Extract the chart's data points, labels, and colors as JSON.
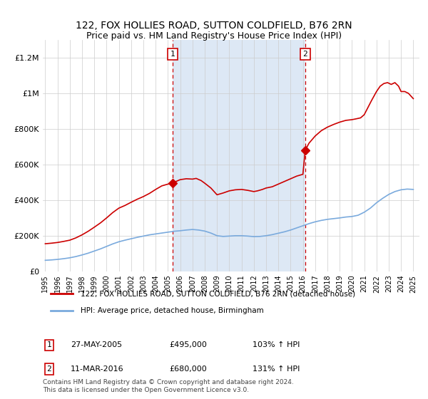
{
  "title1": "122, FOX HOLLIES ROAD, SUTTON COLDFIELD, B76 2RN",
  "title2": "Price paid vs. HM Land Registry's House Price Index (HPI)",
  "sale1_date": 2005.38,
  "sale1_price": 495000,
  "sale1_label": "1",
  "sale1_text": "27-MAY-2005",
  "sale1_amount": "£495,000",
  "sale1_hpi": "103% ↑ HPI",
  "sale2_date": 2016.19,
  "sale2_price": 680000,
  "sale2_label": "2",
  "sale2_text": "11-MAR-2016",
  "sale2_amount": "£680,000",
  "sale2_hpi": "131% ↑ HPI",
  "legend_line1": "122, FOX HOLLIES ROAD, SUTTON COLDFIELD, B76 2RN (detached house)",
  "legend_line2": "HPI: Average price, detached house, Birmingham",
  "footer": "Contains HM Land Registry data © Crown copyright and database right 2024.\nThis data is licensed under the Open Government Licence v3.0.",
  "red_color": "#cc0000",
  "blue_color": "#7aaadd",
  "shade_color": "#dde8f5",
  "ylim": [
    0,
    1300000
  ],
  "xlim_start": 1994.8,
  "xlim_end": 2025.5,
  "red_years": [
    1995.0,
    1995.5,
    1996.0,
    1996.5,
    1997.0,
    1997.5,
    1998.0,
    1998.5,
    1999.0,
    1999.5,
    2000.0,
    2000.5,
    2001.0,
    2001.5,
    2002.0,
    2002.5,
    2003.0,
    2003.5,
    2004.0,
    2004.5,
    2005.0,
    2005.38,
    2005.5,
    2006.0,
    2006.5,
    2007.0,
    2007.3,
    2007.7,
    2008.0,
    2008.5,
    2009.0,
    2009.5,
    2010.0,
    2010.5,
    2011.0,
    2011.5,
    2012.0,
    2012.3,
    2012.7,
    2013.0,
    2013.5,
    2014.0,
    2014.5,
    2015.0,
    2015.5,
    2016.0,
    2016.19,
    2016.5,
    2017.0,
    2017.5,
    2018.0,
    2018.5,
    2019.0,
    2019.5,
    2020.0,
    2020.3,
    2020.7,
    2021.0,
    2021.3,
    2021.6,
    2022.0,
    2022.3,
    2022.6,
    2022.9,
    2023.2,
    2023.5,
    2023.8,
    2024.0,
    2024.3,
    2024.6,
    2025.0
  ],
  "red_vals": [
    155000,
    158000,
    162000,
    168000,
    175000,
    188000,
    205000,
    225000,
    248000,
    272000,
    300000,
    330000,
    355000,
    370000,
    388000,
    405000,
    420000,
    438000,
    460000,
    480000,
    490000,
    495000,
    500000,
    515000,
    520000,
    518000,
    522000,
    510000,
    495000,
    468000,
    430000,
    440000,
    452000,
    458000,
    460000,
    455000,
    448000,
    452000,
    460000,
    468000,
    475000,
    490000,
    505000,
    520000,
    535000,
    545000,
    680000,
    720000,
    760000,
    790000,
    810000,
    825000,
    838000,
    848000,
    852000,
    856000,
    862000,
    880000,
    920000,
    960000,
    1010000,
    1040000,
    1055000,
    1060000,
    1050000,
    1060000,
    1040000,
    1010000,
    1010000,
    1000000,
    970000
  ],
  "blue_years": [
    1995.0,
    1995.5,
    1996.0,
    1996.5,
    1997.0,
    1997.5,
    1998.0,
    1998.5,
    1999.0,
    1999.5,
    2000.0,
    2000.5,
    2001.0,
    2001.5,
    2002.0,
    2002.5,
    2003.0,
    2003.5,
    2004.0,
    2004.5,
    2005.0,
    2005.5,
    2006.0,
    2006.5,
    2007.0,
    2007.5,
    2008.0,
    2008.5,
    2009.0,
    2009.5,
    2010.0,
    2010.5,
    2011.0,
    2011.5,
    2012.0,
    2012.5,
    2013.0,
    2013.5,
    2014.0,
    2014.5,
    2015.0,
    2015.5,
    2016.0,
    2016.5,
    2017.0,
    2017.5,
    2018.0,
    2018.5,
    2019.0,
    2019.5,
    2020.0,
    2020.5,
    2021.0,
    2021.5,
    2022.0,
    2022.5,
    2023.0,
    2023.5,
    2024.0,
    2024.5,
    2025.0
  ],
  "blue_vals": [
    62000,
    64000,
    67000,
    71000,
    76000,
    83000,
    92000,
    102000,
    114000,
    126000,
    140000,
    154000,
    166000,
    175000,
    183000,
    191000,
    198000,
    205000,
    210000,
    215000,
    220000,
    225000,
    228000,
    232000,
    235000,
    232000,
    226000,
    215000,
    200000,
    196000,
    198000,
    200000,
    200000,
    198000,
    195000,
    196000,
    200000,
    206000,
    214000,
    222000,
    232000,
    244000,
    256000,
    268000,
    278000,
    286000,
    292000,
    296000,
    300000,
    305000,
    308000,
    315000,
    332000,
    355000,
    385000,
    410000,
    432000,
    448000,
    458000,
    462000,
    460000
  ]
}
